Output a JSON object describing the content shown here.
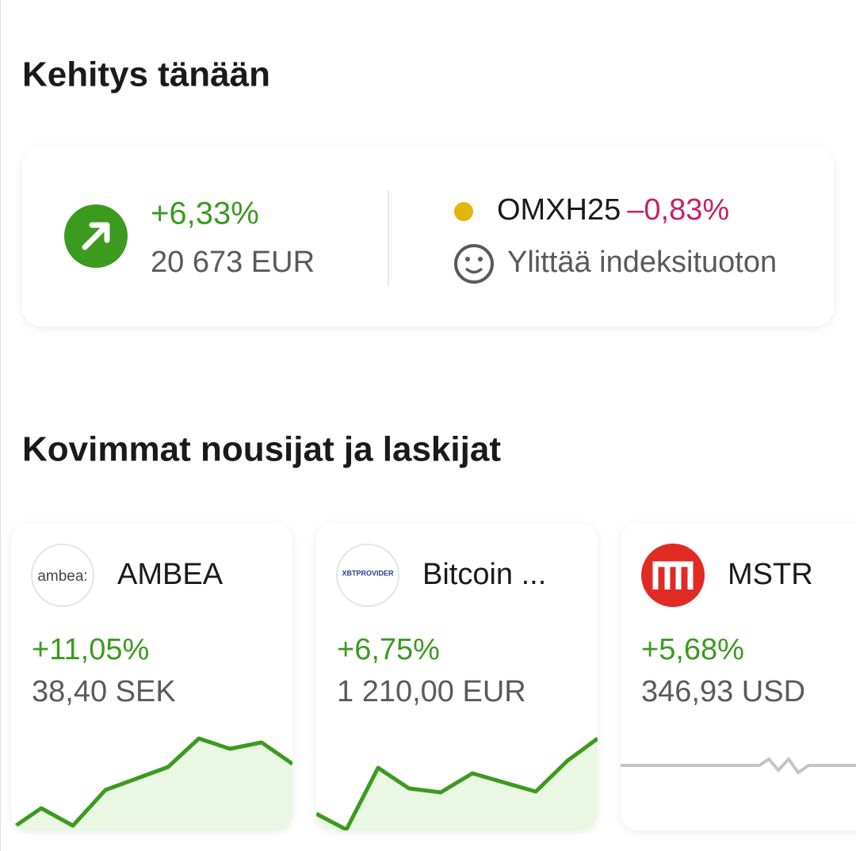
{
  "today": {
    "title": "Kehitys tänään",
    "change": "+6,33%",
    "value": "20 673 EUR",
    "index_name": "OMXH25",
    "index_change": "–0,83%",
    "index_note": "Ylittää indeksituoton"
  },
  "movers": {
    "title": "Kovimmat nousijat ja laskijat",
    "items": [
      {
        "logo_text": "ambea:",
        "name": "AMBEA",
        "change": "+11,05%",
        "price": "38,40 SEK"
      },
      {
        "logo_text": "XBTPROVIDER",
        "name": "Bitcoin ...",
        "change": "+6,75%",
        "price": "1 210,00 EUR"
      },
      {
        "name": "MSTR",
        "change": "+5,68%",
        "price": "346,93 USD"
      }
    ]
  }
}
